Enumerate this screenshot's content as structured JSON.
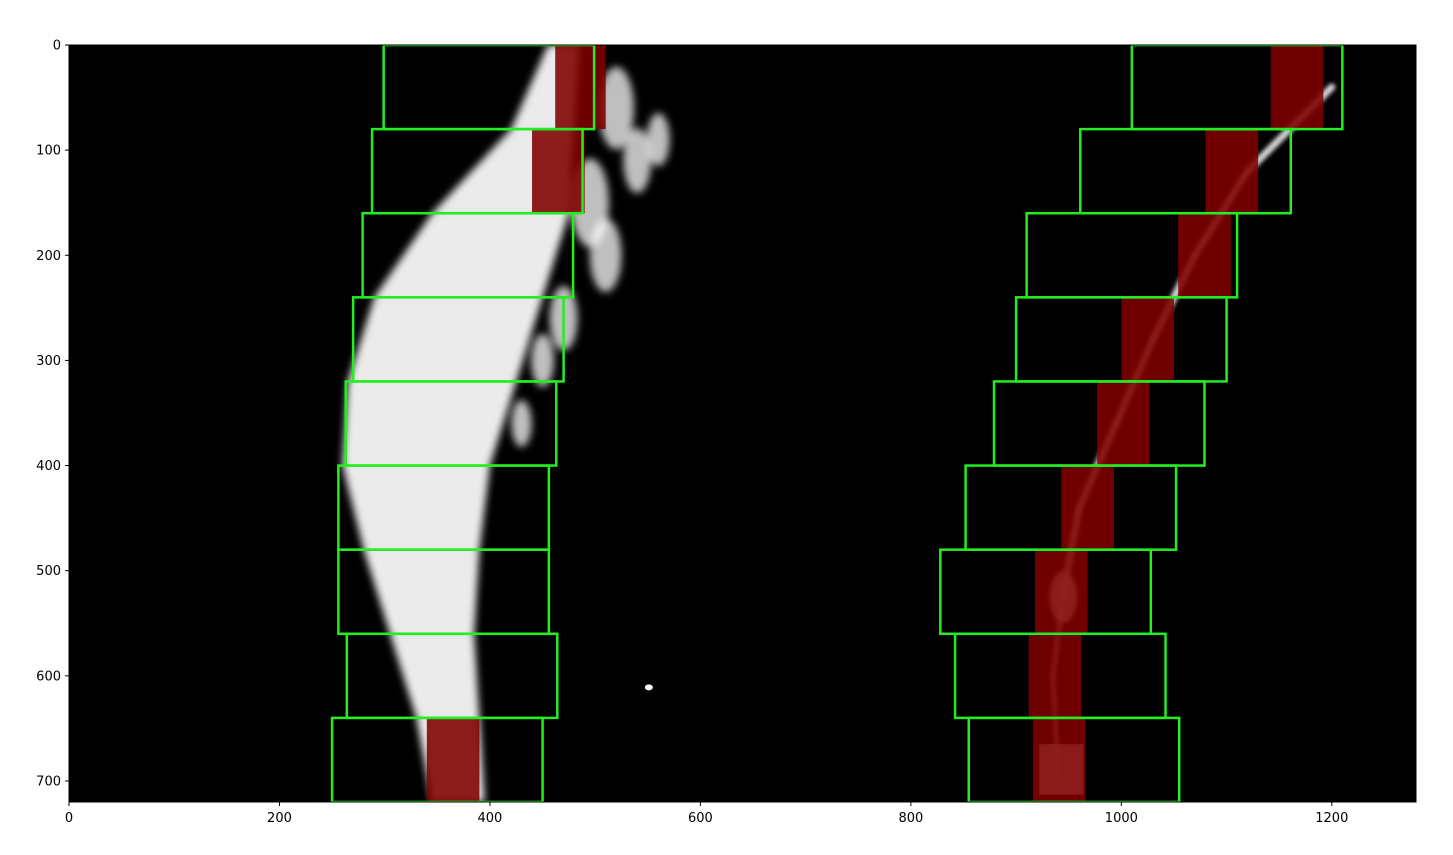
{
  "chart_data": {
    "type": "image",
    "xlim": [
      0,
      1280
    ],
    "ylim": [
      720,
      0
    ],
    "xticks": [
      0,
      200,
      400,
      600,
      800,
      1000,
      1200
    ],
    "yticks": [
      0,
      100,
      200,
      300,
      400,
      500,
      600,
      700
    ],
    "xtick_labels": [
      "0",
      "200",
      "400",
      "600",
      "800",
      "1000",
      "1200"
    ],
    "ytick_labels": [
      "0",
      "100",
      "200",
      "300",
      "400",
      "500",
      "600",
      "700"
    ],
    "background_color": "#000000",
    "window_color": "#22ee22",
    "lane_pixel_color": "#7f0000",
    "left_lane_windows": [
      {
        "x0": 299,
        "x1": 499,
        "y0": 0,
        "y1": 80
      },
      {
        "x0": 288,
        "x1": 488,
        "y0": 80,
        "y1": 160
      },
      {
        "x0": 279,
        "x1": 479,
        "y0": 160,
        "y1": 240
      },
      {
        "x0": 270,
        "x1": 470,
        "y0": 240,
        "y1": 320
      },
      {
        "x0": 263,
        "x1": 463,
        "y0": 320,
        "y1": 400
      },
      {
        "x0": 256,
        "x1": 456,
        "y0": 400,
        "y1": 480
      },
      {
        "x0": 256,
        "x1": 456,
        "y0": 480,
        "y1": 560
      },
      {
        "x0": 264,
        "x1": 464,
        "y0": 560,
        "y1": 640
      },
      {
        "x0": 250,
        "x1": 450,
        "y0": 640,
        "y1": 720
      }
    ],
    "right_lane_windows": [
      {
        "x0": 1010,
        "x1": 1210,
        "y0": 0,
        "y1": 80
      },
      {
        "x0": 961,
        "x1": 1161,
        "y0": 80,
        "y1": 160
      },
      {
        "x0": 910,
        "x1": 1110,
        "y0": 160,
        "y1": 240
      },
      {
        "x0": 900,
        "x1": 1100,
        "y0": 240,
        "y1": 320
      },
      {
        "x0": 879,
        "x1": 1079,
        "y0": 320,
        "y1": 400
      },
      {
        "x0": 852,
        "x1": 1052,
        "y0": 400,
        "y1": 480
      },
      {
        "x0": 828,
        "x1": 1028,
        "y0": 480,
        "y1": 560
      },
      {
        "x0": 842,
        "x1": 1042,
        "y0": 560,
        "y1": 640
      },
      {
        "x0": 855,
        "x1": 1055,
        "y0": 640,
        "y1": 720
      }
    ],
    "left_lane_pixel_bands": [
      {
        "x0": 462,
        "x1": 510,
        "y0": 0,
        "y1": 80
      },
      {
        "x0": 440,
        "x1": 490,
        "y0": 80,
        "y1": 160
      },
      {
        "x0": 340,
        "x1": 390,
        "y0": 640,
        "y1": 720
      }
    ],
    "right_lane_pixel_bands": [
      {
        "x0": 1142,
        "x1": 1192,
        "y0": 0,
        "y1": 80
      },
      {
        "x0": 1080,
        "x1": 1130,
        "y0": 80,
        "y1": 160
      },
      {
        "x0": 1054,
        "x1": 1104,
        "y0": 160,
        "y1": 240
      },
      {
        "x0": 1000,
        "x1": 1050,
        "y0": 240,
        "y1": 320
      },
      {
        "x0": 977,
        "x1": 1027,
        "y0": 320,
        "y1": 400
      },
      {
        "x0": 943,
        "x1": 993,
        "y0": 400,
        "y1": 480
      },
      {
        "x0": 918,
        "x1": 968,
        "y0": 480,
        "y1": 560
      },
      {
        "x0": 912,
        "x1": 962,
        "y0": 560,
        "y1": 640
      },
      {
        "x0": 916,
        "x1": 966,
        "y0": 640,
        "y1": 720
      }
    ]
  }
}
